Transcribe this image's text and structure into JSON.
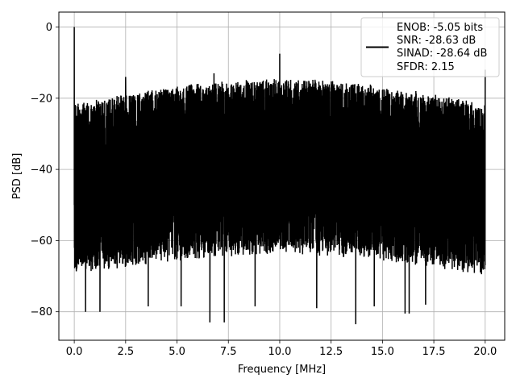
{
  "chart_data": {
    "type": "line",
    "xlabel": "Frequency [MHz]",
    "ylabel": "PSD [dB]",
    "xlim": [
      -0.75,
      20.95
    ],
    "ylim": [
      -88,
      4.2
    ],
    "xticks": [
      0.0,
      2.5,
      5.0,
      7.5,
      10.0,
      12.5,
      15.0,
      17.5,
      20.0
    ],
    "xtick_labels": [
      "0.0",
      "2.5",
      "5.0",
      "7.5",
      "10.0",
      "12.5",
      "15.0",
      "17.5",
      "20.0"
    ],
    "yticks": [
      0,
      -20,
      -40,
      -60,
      -80
    ],
    "ytick_labels": [
      "0",
      "−20",
      "−40",
      "−60",
      "−80"
    ],
    "grid": true,
    "legend_position": "top-right",
    "series": [
      {
        "color": "#000000",
        "x_range": [
          0.0,
          20.0
        ],
        "noise_floor_upper_db": [
          -24,
          -17
        ],
        "noise_floor_lower_db": [
          -66,
          -60
        ],
        "peaks": [
          {
            "x": 0.0,
            "y": 0.0
          },
          {
            "x": 2.5,
            "y": -14.0
          },
          {
            "x": 6.8,
            "y": -13.0
          },
          {
            "x": 10.0,
            "y": -7.5
          },
          {
            "x": 20.0,
            "y": -12.0
          }
        ],
        "dips": [
          {
            "x": 0.55,
            "y": -80.0
          },
          {
            "x": 1.25,
            "y": -80.0
          },
          {
            "x": 3.6,
            "y": -78.5
          },
          {
            "x": 5.2,
            "y": -78.5
          },
          {
            "x": 6.6,
            "y": -83.0
          },
          {
            "x": 7.3,
            "y": -83.0
          },
          {
            "x": 8.8,
            "y": -78.5
          },
          {
            "x": 11.8,
            "y": -79.0
          },
          {
            "x": 13.7,
            "y": -83.5
          },
          {
            "x": 14.6,
            "y": -78.5
          },
          {
            "x": 16.1,
            "y": -80.5
          },
          {
            "x": 16.3,
            "y": -80.5
          },
          {
            "x": 17.1,
            "y": -78.0
          }
        ]
      }
    ],
    "legend": {
      "lines": [
        "ENOB: -5.05 bits",
        "SNR: -28.63 dB",
        "SINAD: -28.64 dB",
        "SFDR: 2.15"
      ]
    }
  }
}
